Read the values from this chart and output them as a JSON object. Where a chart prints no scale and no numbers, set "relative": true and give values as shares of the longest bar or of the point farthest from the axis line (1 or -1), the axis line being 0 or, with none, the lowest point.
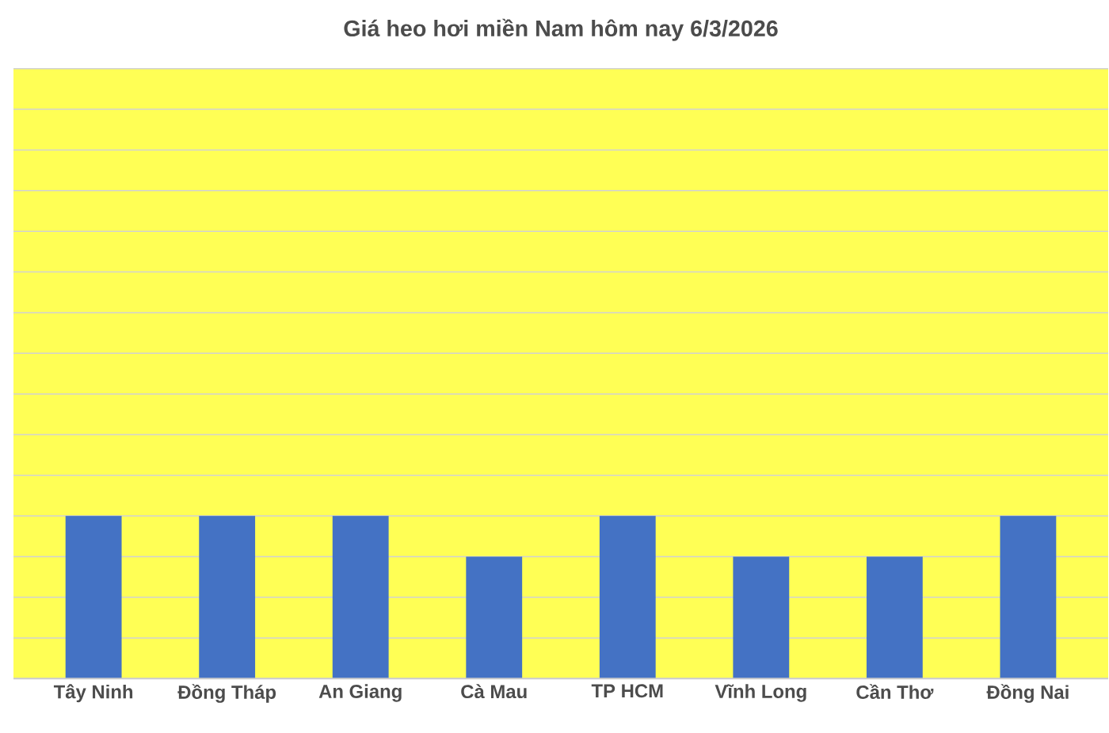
{
  "chart_data": {
    "type": "bar",
    "title": "Giá heo hơi miền Nam hôm nay 6/3/2026",
    "relative": true,
    "categories": [
      "Tây Ninh",
      "Đồng Tháp",
      "An Giang",
      "Cà Mau",
      "TP HCM",
      "Vĩnh Long",
      "Cần Thơ",
      "Đồng Nai"
    ],
    "values": [
      1,
      1,
      1,
      0.75,
      1,
      0.75,
      0.75,
      1
    ],
    "color": "#4472c4",
    "grid": "y"
  }
}
